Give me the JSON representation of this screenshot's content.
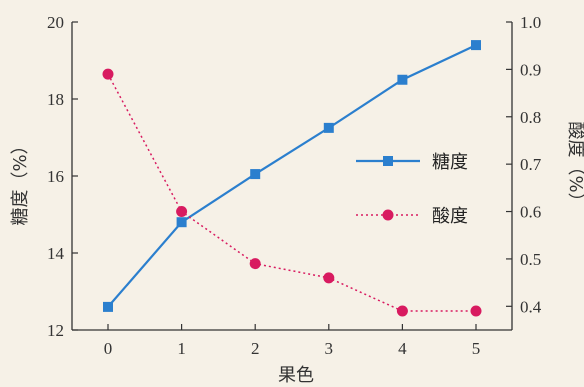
{
  "chart_data": {
    "type": "line",
    "title": "",
    "xlabel": "果色",
    "x": [
      0,
      1,
      2,
      3,
      4,
      5
    ],
    "x_ticks": [
      "0",
      "1",
      "2",
      "3",
      "4",
      "5"
    ],
    "y_left": {
      "label": "糖度（%）",
      "lim": [
        12,
        20
      ],
      "ticks": [
        "12",
        "14",
        "16",
        "18",
        "20"
      ]
    },
    "y_right": {
      "label": "酸度（%）",
      "lim": [
        0.35,
        1.0
      ],
      "ticks": [
        "0.4",
        "0.5",
        "0.6",
        "0.7",
        "0.8",
        "0.9",
        "1.0"
      ]
    },
    "series": [
      {
        "name": "糖度",
        "axis": "left",
        "values": [
          12.6,
          14.8,
          16.05,
          17.25,
          18.5,
          19.4
        ],
        "color": "#2b7fce",
        "style": "solid",
        "marker": "square"
      },
      {
        "name": "酸度",
        "axis": "right",
        "values": [
          0.89,
          0.6,
          0.49,
          0.46,
          0.39,
          0.39
        ],
        "color": "#d81b60",
        "style": "dotted",
        "marker": "circle"
      }
    ],
    "legend": "right-middle",
    "grid": false
  }
}
